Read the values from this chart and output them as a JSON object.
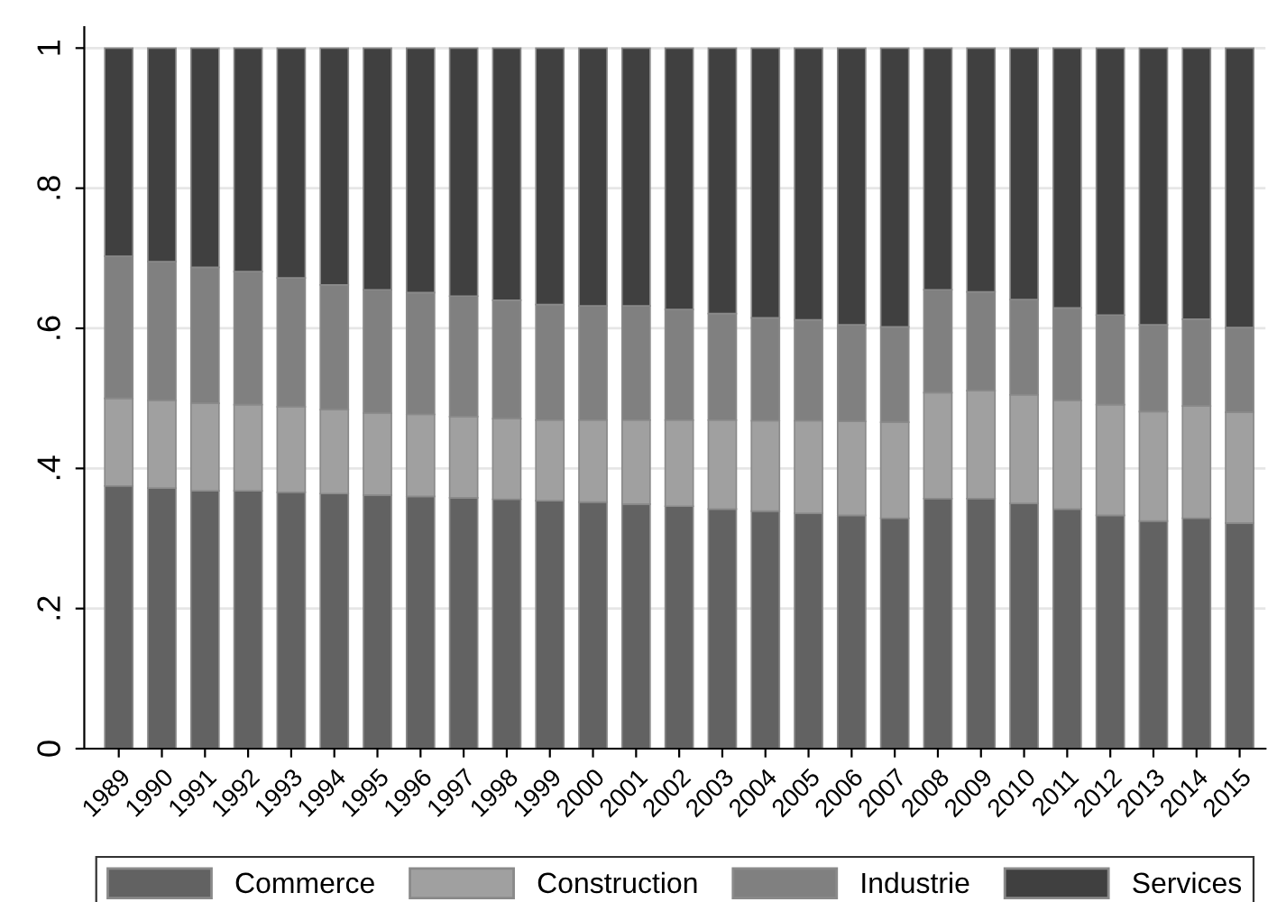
{
  "chart_data": {
    "type": "bar",
    "stacked": true,
    "categories": [
      "1989",
      "1990",
      "1991",
      "1992",
      "1993",
      "1994",
      "1995",
      "1996",
      "1997",
      "1998",
      "1999",
      "2000",
      "2001",
      "2002",
      "2003",
      "2004",
      "2005",
      "2006",
      "2007",
      "2008",
      "2009",
      "2010",
      "2011",
      "2012",
      "2013",
      "2014",
      "2015"
    ],
    "series": [
      {
        "name": "Commerce",
        "color": "#626262",
        "values": [
          0.375,
          0.372,
          0.368,
          0.368,
          0.366,
          0.364,
          0.362,
          0.36,
          0.358,
          0.356,
          0.354,
          0.352,
          0.349,
          0.346,
          0.342,
          0.339,
          0.336,
          0.333,
          0.329,
          0.357,
          0.357,
          0.35,
          0.342,
          0.333,
          0.325,
          0.329,
          0.322
        ]
      },
      {
        "name": "Construction",
        "color": "#a0a0a0",
        "values": [
          0.125,
          0.125,
          0.125,
          0.123,
          0.122,
          0.12,
          0.117,
          0.117,
          0.116,
          0.115,
          0.115,
          0.117,
          0.12,
          0.123,
          0.127,
          0.129,
          0.132,
          0.134,
          0.137,
          0.151,
          0.154,
          0.155,
          0.155,
          0.158,
          0.156,
          0.16,
          0.158
        ]
      },
      {
        "name": "Industrie",
        "color": "#808080",
        "values": [
          0.203,
          0.198,
          0.194,
          0.19,
          0.184,
          0.178,
          0.176,
          0.174,
          0.172,
          0.169,
          0.165,
          0.163,
          0.163,
          0.158,
          0.152,
          0.147,
          0.144,
          0.138,
          0.136,
          0.147,
          0.141,
          0.136,
          0.132,
          0.128,
          0.124,
          0.124,
          0.121
        ]
      },
      {
        "name": "Services",
        "color": "#404040",
        "values": [
          0.297,
          0.305,
          0.313,
          0.319,
          0.328,
          0.338,
          0.345,
          0.349,
          0.354,
          0.36,
          0.366,
          0.368,
          0.368,
          0.373,
          0.379,
          0.385,
          0.388,
          0.395,
          0.398,
          0.345,
          0.348,
          0.359,
          0.371,
          0.381,
          0.395,
          0.387,
          0.399
        ]
      }
    ],
    "ylim": [
      0,
      1.03
    ],
    "yticks": [
      0,
      {
        "value": 0.2,
        "label": ".2"
      },
      {
        "value": 0.4,
        "label": ".4"
      },
      {
        "value": 0.6,
        "label": ".6"
      },
      {
        "value": 0.8,
        "label": ".8"
      },
      1
    ],
    "grid": "y",
    "legend": "bottom"
  }
}
